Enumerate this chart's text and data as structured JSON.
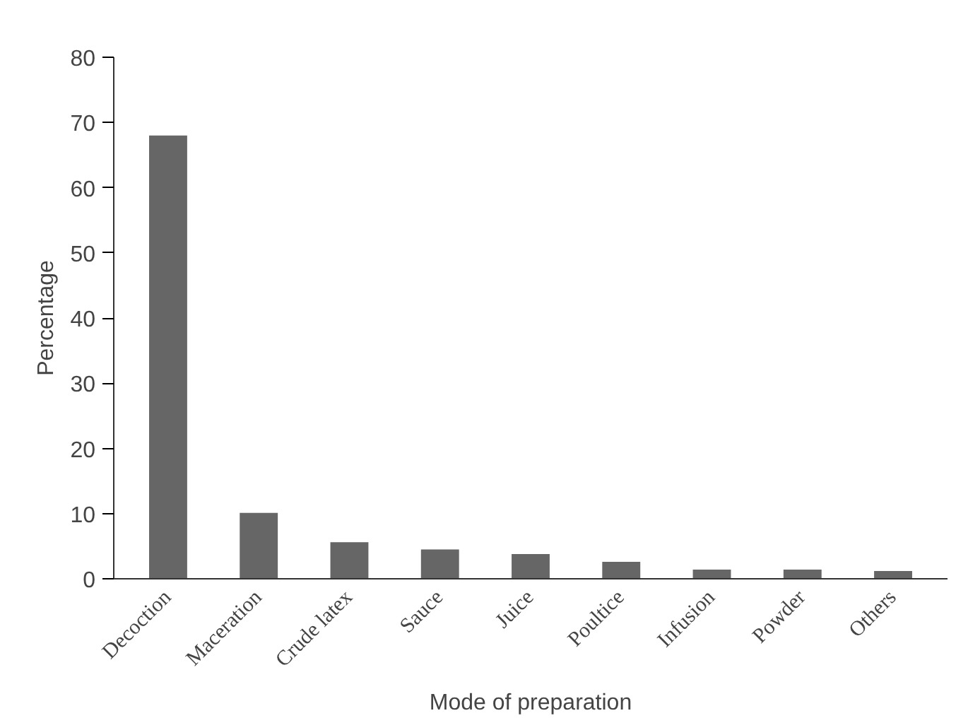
{
  "chart_data": {
    "type": "bar",
    "xlabel": "Mode of preparation",
    "ylabel": "Percentage",
    "categories": [
      "Decoction",
      "Maceration",
      "Crude latex",
      "Sauce",
      "Juice",
      "Poultice",
      "Infusion",
      "Powder",
      "Others"
    ],
    "values": [
      68,
      10.1,
      5.6,
      4.5,
      3.8,
      2.6,
      1.4,
      1.4,
      1.2
    ],
    "color": "#666666",
    "ylim": [
      0,
      80
    ],
    "yticks": [
      0,
      10,
      20,
      30,
      40,
      50,
      60,
      70,
      80
    ],
    "grid": false
  }
}
